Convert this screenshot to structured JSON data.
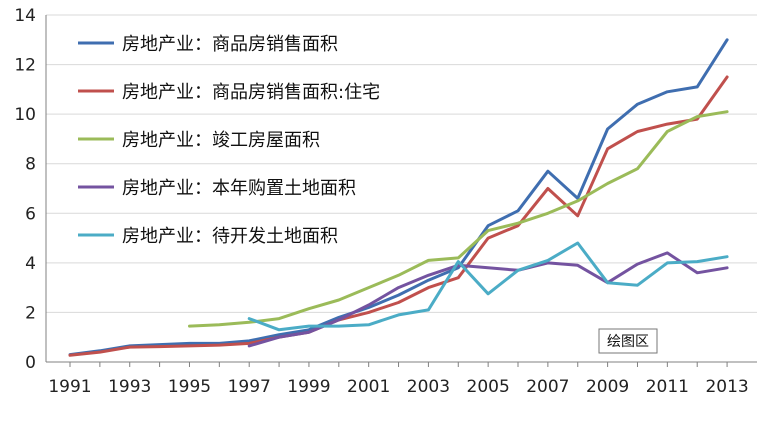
{
  "chart_data": {
    "type": "line",
    "title": "",
    "xlabel": "",
    "ylabel": "",
    "ylim": [
      0,
      14
    ],
    "yticks": [
      "0",
      "2",
      "4",
      "6",
      "8",
      "10",
      "12",
      "14"
    ],
    "xticks": [
      "1991",
      "1993",
      "1995",
      "1997",
      "1999",
      "2001",
      "2003",
      "2005",
      "2007",
      "2009",
      "2011",
      "2013"
    ],
    "grid": true,
    "legend_position": "top-left",
    "series": [
      {
        "name": "房地产业：商品房销售面积",
        "color": "#3F6EB0",
        "x": [
          1991,
          1992,
          1993,
          1994,
          1995,
          1996,
          1997,
          1998,
          1999,
          2000,
          2001,
          2002,
          2003,
          2004,
          2005,
          2006,
          2007,
          2008,
          2009,
          2010,
          2011,
          2012,
          2013
        ],
        "values": [
          0.3,
          0.45,
          0.65,
          0.7,
          0.75,
          0.75,
          0.85,
          1.1,
          1.3,
          1.8,
          2.2,
          2.7,
          3.3,
          3.8,
          5.5,
          6.1,
          7.7,
          6.6,
          9.4,
          10.4,
          10.9,
          11.1,
          13.0
        ]
      },
      {
        "name": "房地产业：商品房销售面积:住宅",
        "color": "#C0504D",
        "x": [
          1991,
          1992,
          1993,
          1994,
          1995,
          1996,
          1997,
          1998,
          1999,
          2000,
          2001,
          2002,
          2003,
          2004,
          2005,
          2006,
          2007,
          2008,
          2009,
          2010,
          2011,
          2012,
          2013
        ],
        "values": [
          0.27,
          0.4,
          0.6,
          0.62,
          0.65,
          0.68,
          0.75,
          1.0,
          1.2,
          1.7,
          2.0,
          2.4,
          3.0,
          3.4,
          5.0,
          5.5,
          7.0,
          5.9,
          8.6,
          9.3,
          9.6,
          9.8,
          11.5
        ]
      },
      {
        "name": "房地产业：竣工房屋面积",
        "color": "#9BBB59",
        "x": [
          1995,
          1996,
          1997,
          1998,
          1999,
          2000,
          2001,
          2002,
          2003,
          2004,
          2005,
          2006,
          2007,
          2008,
          2009,
          2010,
          2011,
          2012,
          2013
        ],
        "values": [
          1.45,
          1.5,
          1.6,
          1.75,
          2.15,
          2.5,
          3.0,
          3.5,
          4.1,
          4.2,
          5.3,
          5.6,
          6.0,
          6.5,
          7.2,
          7.8,
          9.3,
          9.9,
          10.1
        ]
      },
      {
        "name": "房地产业：本年购置土地面积",
        "color": "#7453A0",
        "x": [
          1997,
          1998,
          1999,
          2000,
          2001,
          2002,
          2003,
          2004,
          2005,
          2006,
          2007,
          2008,
          2009,
          2010,
          2011,
          2012,
          2013
        ],
        "values": [
          0.65,
          1.0,
          1.2,
          1.7,
          2.3,
          3.0,
          3.5,
          3.9,
          3.8,
          3.7,
          4.0,
          3.9,
          3.2,
          3.95,
          4.4,
          3.6,
          3.8
        ]
      },
      {
        "name": "房地产业：待开发土地面积",
        "color": "#4BACC6",
        "x": [
          1997,
          1998,
          1999,
          2000,
          2001,
          2002,
          2003,
          2004,
          2005,
          2006,
          2007,
          2008,
          2009,
          2010,
          2011,
          2012,
          2013
        ],
        "values": [
          1.75,
          1.3,
          1.45,
          1.45,
          1.5,
          1.9,
          2.1,
          4.05,
          2.75,
          3.7,
          4.1,
          4.8,
          3.2,
          3.1,
          4.0,
          4.05,
          4.25
        ]
      }
    ],
    "annotation": "绘图区"
  }
}
